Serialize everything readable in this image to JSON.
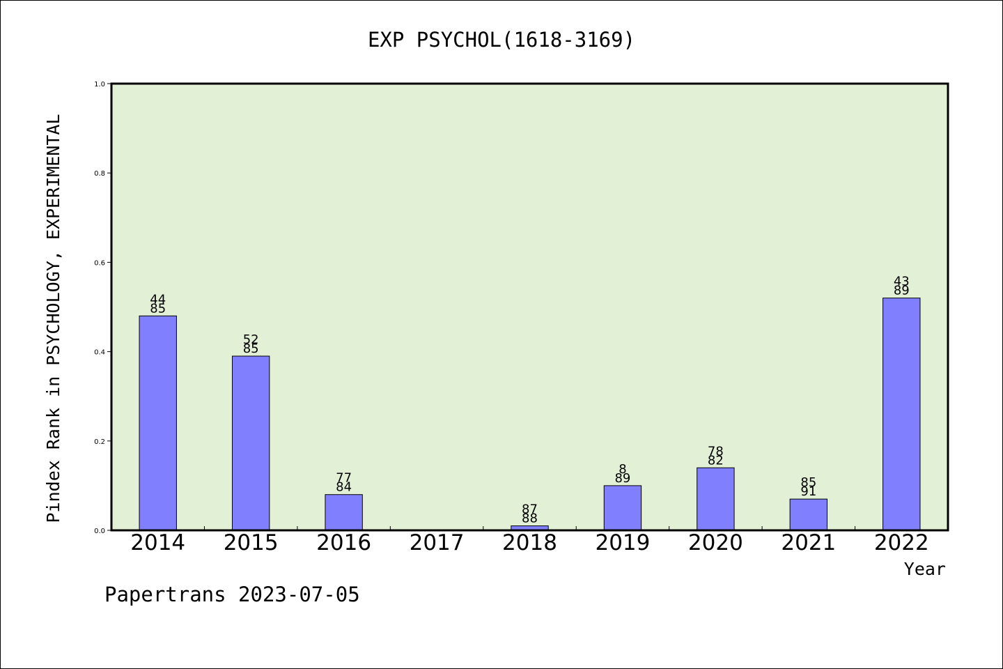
{
  "chart_data": {
    "type": "bar",
    "title": "EXP PSYCHOL(1618-3169)",
    "xlabel": "Year",
    "ylabel": "Pindex Rank in PSYCHOLOGY, EXPERIMENTAL",
    "ylim": [
      0,
      1.0
    ],
    "yticks": [
      "0.0",
      "0.2",
      "0.4",
      "0.6",
      "0.8",
      "1.0"
    ],
    "categories": [
      "2014",
      "2015",
      "2016",
      "2017",
      "2018",
      "2019",
      "2020",
      "2021",
      "2022"
    ],
    "values": [
      0.48,
      0.39,
      0.08,
      null,
      0.01,
      0.1,
      0.14,
      0.07,
      0.52
    ],
    "labels_top": [
      "44",
      "52",
      "77",
      "",
      "87",
      "8",
      "78",
      "85",
      "43"
    ],
    "labels_bottom": [
      "85",
      "85",
      "84",
      "",
      "88",
      "89",
      "82",
      "91",
      "89"
    ],
    "grid": false,
    "plot_background": "#e2f0d6",
    "bar_color": "#8080ff"
  },
  "footer": {
    "text": "Papertrans 2023-07-05"
  }
}
